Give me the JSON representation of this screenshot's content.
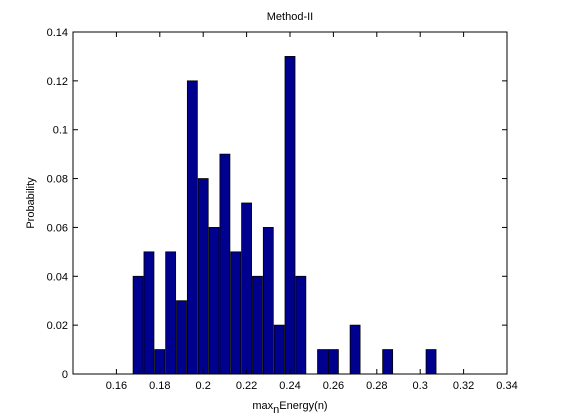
{
  "chart_data": {
    "type": "bar",
    "title": "Method-II",
    "x_label": {
      "base": "max",
      "sub": "n",
      "rest": "Energy(n)"
    },
    "y_label": "Probability",
    "x": [
      0.17,
      0.175,
      0.18,
      0.185,
      0.19,
      0.195,
      0.2,
      0.205,
      0.21,
      0.215,
      0.22,
      0.225,
      0.23,
      0.235,
      0.24,
      0.245,
      0.255,
      0.26,
      0.27,
      0.285,
      0.305
    ],
    "values": [
      0.04,
      0.05,
      0.01,
      0.05,
      0.03,
      0.12,
      0.08,
      0.06,
      0.09,
      0.05,
      0.07,
      0.04,
      0.06,
      0.02,
      0.13,
      0.04,
      0.01,
      0.01,
      0.02,
      0.01,
      0.01
    ],
    "color": "#00008f",
    "xlim": [
      0.14,
      0.34
    ],
    "xticks": [
      0.16,
      0.18,
      0.2,
      0.22,
      0.24,
      0.26,
      0.28,
      0.3,
      0.32,
      0.34
    ],
    "ylim": [
      0,
      0.14
    ],
    "yticks": [
      0,
      0.02,
      0.04,
      0.06,
      0.08,
      0.1,
      0.12,
      0.14
    ]
  }
}
